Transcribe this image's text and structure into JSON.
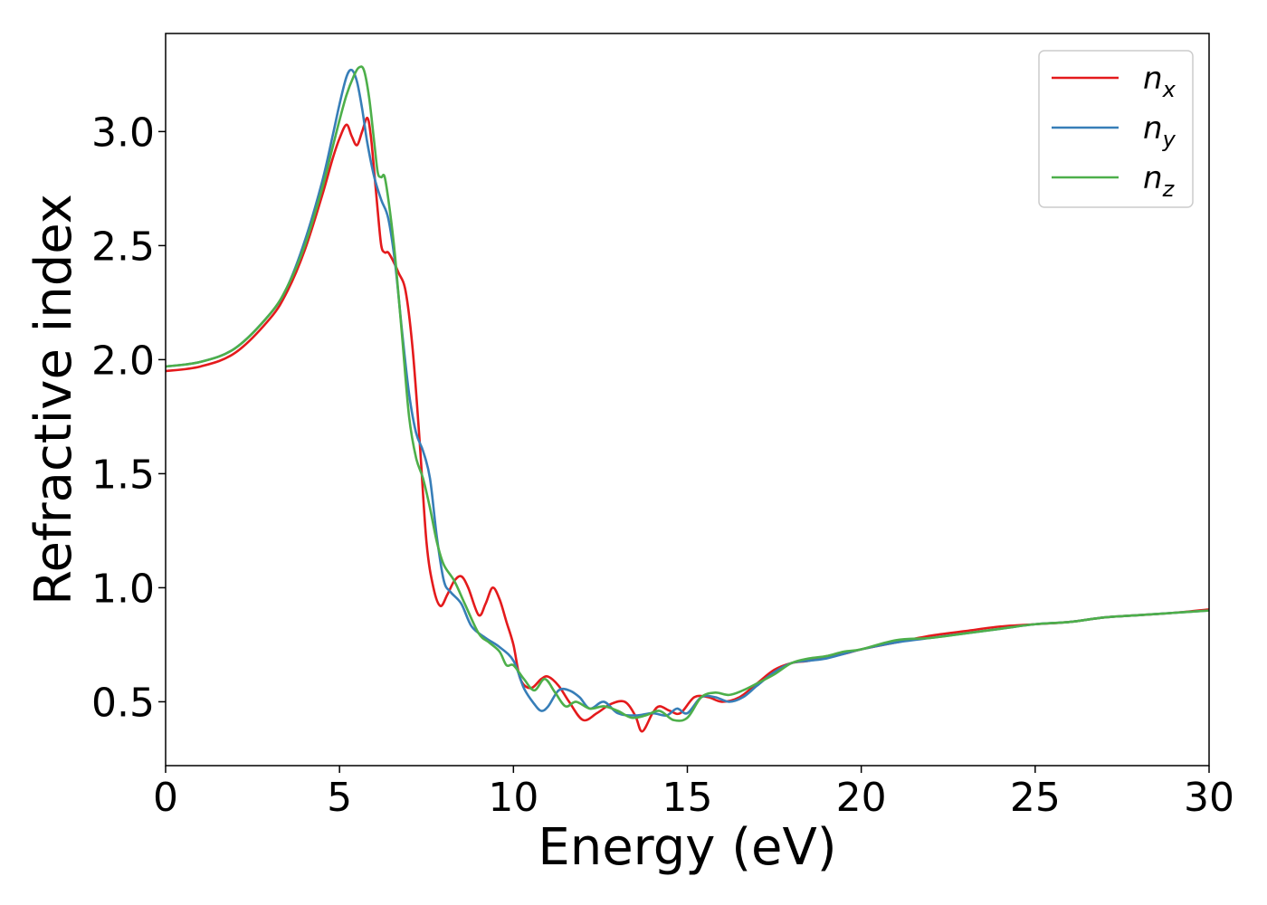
{
  "chart_data": {
    "type": "line",
    "title": "",
    "xlabel": "Energy (eV)",
    "ylabel": "Refractive index",
    "xlim": [
      0,
      30
    ],
    "ylim": [
      0.22,
      3.43
    ],
    "xticks": [
      0,
      5,
      10,
      15,
      20,
      25,
      30
    ],
    "yticks": [
      0.5,
      1.0,
      1.5,
      2.0,
      2.5,
      3.0
    ],
    "xtick_labels": [
      "0",
      "5",
      "10",
      "15",
      "20",
      "25",
      "30"
    ],
    "ytick_labels": [
      "0.5",
      "1.0",
      "1.5",
      "2.0",
      "2.5",
      "3.0"
    ],
    "grid": false,
    "legend_position": "top-right",
    "series": [
      {
        "name": "n_x",
        "label_main": "n",
        "label_sub": "x",
        "color": "#e41a1c",
        "x": [
          0,
          1,
          2,
          3,
          3.5,
          4,
          4.5,
          4.8,
          5.0,
          5.2,
          5.35,
          5.5,
          5.65,
          5.8,
          5.9,
          6.0,
          6.1,
          6.2,
          6.3,
          6.4,
          6.55,
          6.7,
          6.9,
          7.1,
          7.3,
          7.5,
          7.7,
          7.9,
          8.1,
          8.3,
          8.5,
          8.7,
          9.0,
          9.2,
          9.4,
          9.6,
          9.8,
          10.0,
          10.2,
          10.5,
          10.8,
          11.0,
          11.3,
          11.6,
          12.0,
          12.4,
          12.8,
          13.2,
          13.5,
          13.7,
          14.0,
          14.2,
          14.5,
          14.8,
          15.2,
          15.6,
          16.0,
          16.5,
          17.0,
          17.5,
          18.0,
          18.5,
          19.0,
          19.5,
          20,
          21,
          22,
          23,
          24,
          25,
          26,
          27,
          28,
          29,
          30
        ],
        "y": [
          1.95,
          1.97,
          2.03,
          2.18,
          2.3,
          2.48,
          2.72,
          2.88,
          2.97,
          3.03,
          2.98,
          2.94,
          3.0,
          3.06,
          2.98,
          2.82,
          2.65,
          2.5,
          2.47,
          2.47,
          2.43,
          2.38,
          2.3,
          2.05,
          1.65,
          1.2,
          1.0,
          0.92,
          0.97,
          1.03,
          1.05,
          1.0,
          0.88,
          0.93,
          1.0,
          0.95,
          0.85,
          0.75,
          0.6,
          0.56,
          0.6,
          0.61,
          0.57,
          0.5,
          0.42,
          0.45,
          0.49,
          0.5,
          0.44,
          0.37,
          0.45,
          0.48,
          0.46,
          0.45,
          0.52,
          0.52,
          0.5,
          0.52,
          0.58,
          0.64,
          0.67,
          0.68,
          0.7,
          0.71,
          0.73,
          0.76,
          0.79,
          0.81,
          0.83,
          0.84,
          0.85,
          0.87,
          0.88,
          0.89,
          0.905
        ]
      },
      {
        "name": "n_y",
        "label_main": "n",
        "label_sub": "y",
        "color": "#377eb8",
        "x": [
          0,
          1,
          2,
          3,
          3.5,
          4,
          4.5,
          4.8,
          5.0,
          5.2,
          5.35,
          5.5,
          5.65,
          5.8,
          6.0,
          6.2,
          6.4,
          6.6,
          6.8,
          7.0,
          7.2,
          7.4,
          7.6,
          7.8,
          8.0,
          8.2,
          8.5,
          8.8,
          9.2,
          9.6,
          10.0,
          10.3,
          10.6,
          10.8,
          11.0,
          11.3,
          11.6,
          11.9,
          12.2,
          12.6,
          13.0,
          13.5,
          14.0,
          14.4,
          14.7,
          15.0,
          15.4,
          15.8,
          16.2,
          16.6,
          17.0,
          17.5,
          18.0,
          18.5,
          19.0,
          19.5,
          20,
          21,
          22,
          23,
          24,
          25,
          26,
          27,
          28,
          29,
          30
        ],
        "y": [
          1.97,
          1.99,
          2.05,
          2.2,
          2.32,
          2.52,
          2.78,
          2.98,
          3.12,
          3.24,
          3.27,
          3.22,
          3.1,
          2.95,
          2.8,
          2.7,
          2.62,
          2.42,
          2.12,
          1.85,
          1.68,
          1.6,
          1.48,
          1.22,
          1.03,
          0.98,
          0.93,
          0.83,
          0.78,
          0.74,
          0.68,
          0.56,
          0.49,
          0.46,
          0.48,
          0.55,
          0.55,
          0.52,
          0.47,
          0.5,
          0.45,
          0.44,
          0.45,
          0.44,
          0.47,
          0.45,
          0.52,
          0.52,
          0.5,
          0.52,
          0.57,
          0.63,
          0.67,
          0.68,
          0.69,
          0.71,
          0.73,
          0.76,
          0.78,
          0.8,
          0.82,
          0.84,
          0.85,
          0.87,
          0.88,
          0.89,
          0.9
        ]
      },
      {
        "name": "n_z",
        "label_main": "n",
        "label_sub": "z",
        "color": "#4daf4a",
        "x": [
          0,
          1,
          2,
          3,
          3.5,
          4,
          4.5,
          4.8,
          5.0,
          5.2,
          5.4,
          5.55,
          5.7,
          5.85,
          6.0,
          6.1,
          6.2,
          6.3,
          6.45,
          6.6,
          6.8,
          7.0,
          7.2,
          7.4,
          7.6,
          7.8,
          8.0,
          8.3,
          8.6,
          9.0,
          9.3,
          9.6,
          9.8,
          10.0,
          10.3,
          10.6,
          10.9,
          11.2,
          11.5,
          11.8,
          12.2,
          12.6,
          13.0,
          13.4,
          13.8,
          14.2,
          14.6,
          15.0,
          15.4,
          15.8,
          16.2,
          16.6,
          17.0,
          17.5,
          18.0,
          18.5,
          19.0,
          19.5,
          20,
          21,
          22,
          23,
          24,
          25,
          26,
          27,
          28,
          29,
          30
        ],
        "y": [
          1.97,
          1.99,
          2.05,
          2.2,
          2.32,
          2.5,
          2.75,
          2.93,
          3.05,
          3.16,
          3.24,
          3.28,
          3.27,
          3.15,
          2.95,
          2.82,
          2.8,
          2.8,
          2.65,
          2.45,
          2.1,
          1.75,
          1.57,
          1.48,
          1.35,
          1.2,
          1.1,
          1.03,
          0.93,
          0.8,
          0.76,
          0.72,
          0.66,
          0.66,
          0.6,
          0.55,
          0.6,
          0.54,
          0.48,
          0.5,
          0.47,
          0.48,
          0.46,
          0.43,
          0.44,
          0.46,
          0.42,
          0.43,
          0.52,
          0.54,
          0.53,
          0.55,
          0.58,
          0.62,
          0.67,
          0.69,
          0.7,
          0.72,
          0.73,
          0.77,
          0.78,
          0.8,
          0.82,
          0.84,
          0.85,
          0.87,
          0.88,
          0.89,
          0.9
        ]
      }
    ]
  }
}
